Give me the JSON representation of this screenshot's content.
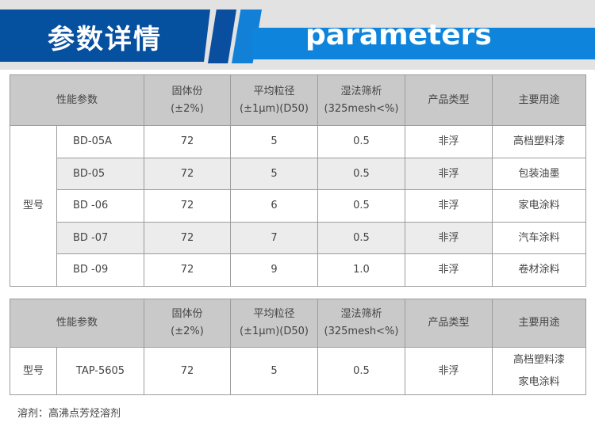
{
  "banner": {
    "title_cn": "参数详情",
    "title_en": "parameters"
  },
  "table1": {
    "headers": [
      "性能参数",
      "固体份",
      "(±2%)",
      "平均粒径",
      "(±1μm)(D50)",
      "湿法筛析",
      "(325mesh<%)",
      "产品类型",
      "主要用途"
    ],
    "group_label": "型号",
    "rows": [
      [
        "BD-05A",
        "72",
        "5",
        "0.5",
        "非浮",
        "高档塑料漆"
      ],
      [
        "BD-05",
        "72",
        "5",
        "0.5",
        "非浮",
        "包装油墨"
      ],
      [
        "BD -06",
        "72",
        "6",
        "0.5",
        "非浮",
        "家电涂料"
      ],
      [
        "BD -07",
        "72",
        "7",
        "0.5",
        "非浮",
        "汽车涂料"
      ],
      [
        "BD -09",
        "72",
        "9",
        "1.0",
        "非浮",
        "卷材涂料"
      ]
    ]
  },
  "table2": {
    "headers": [
      "性能参数",
      "固体份",
      "(±2%)",
      "平均粒径",
      "(±1μm)(D50)",
      "湿法筛析",
      "(325mesh<%)",
      "产品类型",
      "主要用途"
    ],
    "row": {
      "label": "型号",
      "model": "TAP-5605",
      "solid": "72",
      "size": "5",
      "sieve": "0.5",
      "type": "非浮",
      "use1": "高档塑料漆",
      "use2": "家电涂料"
    }
  },
  "note": "溶剂：高沸点芳烃溶剂"
}
